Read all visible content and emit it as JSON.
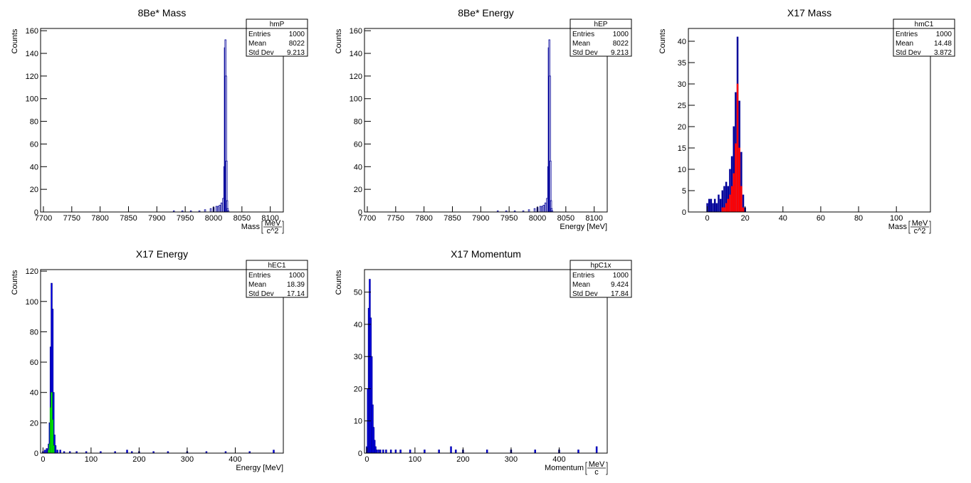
{
  "chart_data": [
    {
      "type": "bar",
      "title": "8Be* Mass",
      "xlabel": "Mass",
      "xunit": {
        "num": "MeV",
        "den": "c^2"
      },
      "ylabel": "Counts",
      "xlim": [
        7695,
        8123
      ],
      "ylim": [
        0,
        162
      ],
      "xticks": [
        7700,
        7750,
        7800,
        7850,
        7900,
        7950,
        8000,
        8050,
        8100
      ],
      "yticks": [
        0,
        20,
        40,
        60,
        80,
        100,
        120,
        140,
        160
      ],
      "stats": {
        "name": "hmP",
        "rows": [
          [
            "Entries",
            "1000"
          ],
          [
            "Mean",
            "8022"
          ],
          [
            "Std Dev",
            "9.213"
          ]
        ]
      },
      "grid": false,
      "series": [
        {
          "color": "#000099",
          "fill": "none",
          "x": [
            7930,
            7945,
            7960,
            7975,
            7985,
            7995,
            8000,
            8005,
            8008,
            8011,
            8014,
            8017,
            8019,
            8020,
            8021,
            8022,
            8023,
            8024,
            8025,
            8026
          ],
          "y": [
            1,
            1,
            1,
            1,
            2,
            3,
            4,
            5,
            5,
            6,
            8,
            12,
            40,
            145,
            152,
            120,
            45,
            10,
            3,
            1
          ]
        }
      ]
    },
    {
      "type": "bar",
      "title": "8Be* Energy",
      "xlabel": "Energy [MeV]",
      "ylabel": "Counts",
      "xlim": [
        7695,
        8123
      ],
      "ylim": [
        0,
        162
      ],
      "xticks": [
        7700,
        7750,
        7800,
        7850,
        7900,
        7950,
        8000,
        8050,
        8100
      ],
      "yticks": [
        0,
        20,
        40,
        60,
        80,
        100,
        120,
        140,
        160
      ],
      "stats": {
        "name": "hEP",
        "rows": [
          [
            "Entries",
            "1000"
          ],
          [
            "Mean",
            "8022"
          ],
          [
            "Std Dev",
            "9.213"
          ]
        ]
      },
      "grid": false,
      "series": [
        {
          "color": "#000099",
          "fill": "none",
          "x": [
            7930,
            7945,
            7960,
            7975,
            7985,
            7995,
            8000,
            8005,
            8008,
            8011,
            8014,
            8017,
            8019,
            8020,
            8021,
            8022,
            8023,
            8024,
            8025,
            8026
          ],
          "y": [
            1,
            1,
            1,
            1,
            2,
            3,
            4,
            5,
            5,
            6,
            8,
            12,
            40,
            145,
            152,
            120,
            45,
            10,
            3,
            1
          ]
        }
      ]
    },
    {
      "type": "bar",
      "title": "X17 Mass",
      "xlabel": "Mass",
      "xunit": {
        "num": "MeV",
        "den": "c^2"
      },
      "ylabel": "Counts",
      "xlim": [
        -10,
        118
      ],
      "ylim": [
        0,
        43
      ],
      "xticks": [
        0,
        20,
        40,
        60,
        80,
        100
      ],
      "yticks": [
        0,
        5,
        10,
        15,
        20,
        25,
        30,
        35,
        40
      ],
      "stats": {
        "name": "hmC1",
        "rows": [
          [
            "Entries",
            "1000"
          ],
          [
            "Mean",
            "14.48"
          ],
          [
            "Std Dev",
            "3.872"
          ]
        ]
      },
      "grid": false,
      "series": [
        {
          "color": "#000099",
          "fill": "#000099",
          "x": [
            0,
            1,
            2,
            3,
            4,
            5,
            6,
            7,
            8,
            9,
            10,
            11,
            12,
            13,
            14,
            15,
            16,
            17,
            18,
            19,
            20
          ],
          "y": [
            2,
            3,
            3,
            2,
            3,
            2,
            4,
            3,
            5,
            6,
            7,
            6,
            10,
            13,
            20,
            28,
            41,
            26,
            14,
            4,
            1
          ]
        },
        {
          "color": "#ff0000",
          "fill": "#ff0000",
          "x": [
            8,
            9,
            10,
            11,
            12,
            13,
            14,
            15,
            16,
            17,
            18,
            19
          ],
          "y": [
            1,
            1,
            2,
            3,
            4,
            6,
            9,
            16,
            30,
            15,
            6,
            1
          ]
        }
      ]
    },
    {
      "type": "bar",
      "title": "X17 Energy",
      "xlabel": "Energy [MeV]",
      "ylabel": "Counts",
      "xlim": [
        -5,
        500
      ],
      "ylim": [
        0,
        121
      ],
      "xticks": [
        0,
        100,
        200,
        300,
        400
      ],
      "yticks": [
        0,
        20,
        40,
        60,
        80,
        100,
        120
      ],
      "stats": {
        "name": "hEC1",
        "rows": [
          [
            "Entries",
            "1000"
          ],
          [
            "Mean",
            "18.39"
          ],
          [
            "Std Dev",
            "17.14"
          ]
        ]
      },
      "grid": false,
      "series": [
        {
          "color": "#000099",
          "fill": "#0000ff",
          "x": [
            0,
            4,
            8,
            12,
            14,
            16,
            18,
            20,
            22,
            24,
            26,
            30,
            36,
            44,
            56,
            70,
            90,
            120,
            150,
            175,
            185,
            200,
            230,
            260,
            300,
            340,
            380,
            430,
            480
          ],
          "y": [
            1,
            2,
            3,
            6,
            20,
            70,
            112,
            95,
            40,
            12,
            5,
            2,
            2,
            1,
            1,
            1,
            1,
            1,
            1,
            2,
            1,
            1,
            1,
            1,
            1,
            1,
            1,
            1,
            2
          ]
        },
        {
          "color": "#00aa00",
          "fill": "#00ff00",
          "x": [
            12,
            14,
            16,
            18,
            20,
            22
          ],
          "y": [
            2,
            6,
            30,
            40,
            22,
            5
          ]
        }
      ]
    },
    {
      "type": "bar",
      "title": "X17 Momentum",
      "xlabel": "Momentum",
      "xunit": {
        "num": "MeV",
        "den": "c"
      },
      "ylabel": "Counts",
      "xlim": [
        -5,
        500
      ],
      "ylim": [
        0,
        57
      ],
      "xticks": [
        0,
        100,
        200,
        300,
        400
      ],
      "yticks": [
        0,
        10,
        20,
        30,
        40,
        50
      ],
      "stats": {
        "name": "hpC1x",
        "rows": [
          [
            "Entries",
            "1000"
          ],
          [
            "Mean",
            "9.424"
          ],
          [
            "Std Dev",
            "17.84"
          ]
        ]
      },
      "grid": false,
      "series": [
        {
          "color": "#000099",
          "fill": "#0000ff",
          "x": [
            0,
            2,
            4,
            6,
            8,
            10,
            12,
            14,
            16,
            18,
            20,
            24,
            28,
            34,
            40,
            50,
            60,
            70,
            90,
            120,
            150,
            175,
            185,
            200,
            250,
            300,
            350,
            400,
            440,
            478
          ],
          "y": [
            2,
            20,
            45,
            54,
            42,
            30,
            15,
            8,
            4,
            2,
            1,
            1,
            1,
            1,
            1,
            1,
            1,
            1,
            1,
            1,
            1,
            2,
            1,
            1,
            1,
            1,
            1,
            1,
            1,
            2
          ]
        }
      ]
    }
  ]
}
